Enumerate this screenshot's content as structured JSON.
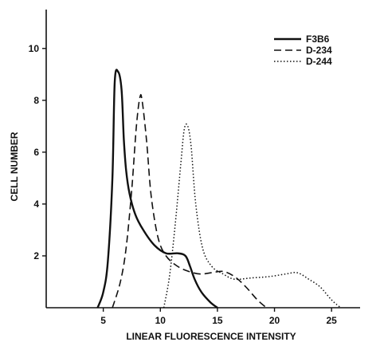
{
  "chart_data": {
    "type": "line",
    "xlabel": "LINEAR FLUORESCENCE INTENSITY",
    "ylabel": "CELL NUMBER",
    "xlim": [
      0,
      27.5
    ],
    "ylim": [
      0,
      11.5
    ],
    "xticks": [
      5,
      10,
      15,
      20,
      25
    ],
    "yticks": [
      2,
      4,
      6,
      8,
      10
    ],
    "grid": false,
    "legend_position": "top-right",
    "series": [
      {
        "name": "F3B6",
        "style": "solid",
        "x": [
          4.5,
          5.0,
          5.4,
          5.8,
          6.0,
          6.3,
          6.6,
          6.8,
          7.0,
          7.3,
          7.8,
          8.5,
          9.5,
          10.5,
          11.5,
          12.2,
          12.6,
          13.0,
          13.6,
          14.4,
          15.0
        ],
        "y": [
          0.0,
          0.6,
          1.8,
          5.0,
          8.7,
          9.1,
          8.4,
          6.5,
          5.3,
          4.4,
          3.6,
          3.0,
          2.4,
          2.1,
          2.1,
          2.0,
          1.6,
          1.1,
          0.6,
          0.2,
          0.0
        ]
      },
      {
        "name": "D-234",
        "style": "dashed",
        "x": [
          5.8,
          6.5,
          7.0,
          7.5,
          7.9,
          8.2,
          8.4,
          8.8,
          9.2,
          9.8,
          10.5,
          11.5,
          12.5,
          13.5,
          14.5,
          15.5,
          16.5,
          17.5,
          18.5,
          19.3
        ],
        "y": [
          0.0,
          1.0,
          2.3,
          4.6,
          7.0,
          8.1,
          8.0,
          6.4,
          4.3,
          2.7,
          2.0,
          1.6,
          1.4,
          1.3,
          1.35,
          1.4,
          1.2,
          0.8,
          0.3,
          0.0
        ]
      },
      {
        "name": "D-244",
        "style": "dotted",
        "x": [
          10.3,
          10.8,
          11.3,
          11.8,
          12.1,
          12.4,
          12.7,
          13.1,
          13.7,
          14.5,
          15.5,
          16.5,
          18.0,
          19.5,
          21.0,
          22.0,
          23.0,
          24.0,
          25.0,
          25.8
        ],
        "y": [
          0.0,
          1.2,
          3.2,
          5.6,
          6.9,
          7.0,
          6.2,
          4.0,
          2.3,
          1.6,
          1.3,
          1.1,
          1.15,
          1.2,
          1.3,
          1.35,
          1.1,
          0.8,
          0.3,
          0.0
        ]
      }
    ]
  }
}
